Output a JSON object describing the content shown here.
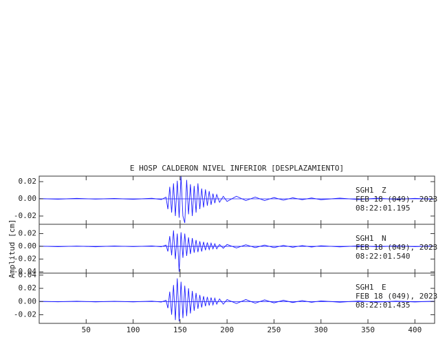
{
  "chart_data": [
    {
      "type": "line",
      "title": "E HOSP CALDERON NIVEL INFERIOR [DESPLAZAMIENTO]",
      "station": "SGH1",
      "component": "Z",
      "date": "FEB 18 (049), 2023",
      "time": "08:22:01.195",
      "xlim": [
        0,
        421
      ],
      "ylim": [
        -0.0296,
        0.0264
      ],
      "yticks": [
        0.02,
        {
          "value": 0,
          "label": "0.00"
        },
        -0.02
      ],
      "x": [
        0,
        20,
        40,
        60,
        80,
        100,
        120,
        130,
        135,
        137,
        139,
        141,
        143,
        145,
        147,
        149,
        151,
        153,
        155,
        157,
        159,
        161,
        163,
        165,
        167,
        169,
        171,
        173,
        175,
        177,
        179,
        181,
        183,
        185,
        187,
        189,
        192,
        196,
        200,
        210,
        220,
        230,
        240,
        250,
        260,
        270,
        280,
        290,
        300,
        320,
        340,
        360,
        380,
        400,
        420
      ],
      "color": "#1a1aff",
      "values": [
        0.0003,
        -0.0004,
        0.0005,
        -0.0003,
        0.0004,
        -0.0005,
        0.0006,
        -0.0008,
        0.002,
        -0.012,
        0.014,
        -0.016,
        0.018,
        -0.02,
        0.021,
        -0.022,
        0.026,
        -0.02,
        -0.028,
        0.022,
        -0.018,
        0.017,
        -0.02,
        0.015,
        -0.016,
        0.018,
        -0.012,
        0.012,
        -0.01,
        0.011,
        -0.008,
        0.009,
        -0.007,
        0.006,
        -0.005,
        0.005,
        -0.004,
        0.003,
        -0.003,
        0.003,
        -0.002,
        0.002,
        -0.002,
        0.0015,
        -0.0015,
        0.0012,
        -0.001,
        0.001,
        -0.001,
        0.0008,
        -0.0008,
        0.0007,
        -0.0006,
        0.0005,
        -0.0005
      ]
    },
    {
      "type": "line",
      "ylabel": "Amplitud [cm]",
      "station": "SGH1",
      "component": "N",
      "date": "FEB 18 (049), 2023",
      "time": "08:22:01.540",
      "xlim": [
        0,
        421
      ],
      "ylim": [
        -0.042,
        0.0346
      ],
      "yticks": [
        0.02,
        {
          "value": 0,
          "label": "0.00"
        },
        -0.02,
        -0.04
      ],
      "x": [
        0,
        20,
        40,
        60,
        80,
        100,
        120,
        130,
        135,
        137,
        139,
        141,
        143,
        145,
        147,
        149,
        151,
        153,
        155,
        157,
        159,
        161,
        163,
        165,
        167,
        169,
        171,
        173,
        175,
        177,
        179,
        181,
        183,
        185,
        187,
        189,
        192,
        196,
        200,
        210,
        220,
        230,
        240,
        250,
        260,
        270,
        280,
        290,
        300,
        320,
        340,
        360,
        380,
        400,
        420
      ],
      "color": "#1a1aff",
      "values": [
        0.0004,
        -0.0005,
        0.0004,
        -0.0006,
        0.0005,
        -0.0004,
        0.0006,
        -0.0007,
        0.002,
        -0.008,
        0.016,
        -0.014,
        0.025,
        -0.02,
        0.02,
        -0.04,
        0.022,
        -0.018,
        0.02,
        -0.015,
        0.014,
        -0.012,
        0.013,
        -0.01,
        0.01,
        -0.009,
        0.008,
        -0.008,
        0.007,
        -0.006,
        0.006,
        -0.005,
        0.005,
        -0.004,
        0.004,
        -0.004,
        0.003,
        -0.003,
        0.003,
        -0.0025,
        0.0025,
        -0.002,
        0.002,
        -0.002,
        0.0015,
        -0.0015,
        0.0012,
        -0.001,
        0.001,
        -0.0008,
        0.0008,
        -0.0007,
        0.0006,
        -0.0005,
        0.0005
      ]
    },
    {
      "type": "line",
      "station": "SGH1",
      "component": "E",
      "date": "FEB 18 (049), 2023",
      "time": "08:22:01.435",
      "xlim": [
        0,
        421
      ],
      "ylim": [
        -0.033,
        0.043
      ],
      "xticks": [
        50,
        100,
        150,
        200,
        250,
        300,
        350,
        400
      ],
      "yticks": [
        0.04,
        0.02,
        {
          "value": 0,
          "label": "0.00"
        },
        -0.02
      ],
      "x": [
        0,
        20,
        40,
        60,
        80,
        100,
        120,
        130,
        135,
        137,
        139,
        141,
        143,
        145,
        147,
        149,
        151,
        153,
        155,
        157,
        159,
        161,
        163,
        165,
        167,
        169,
        171,
        173,
        175,
        177,
        179,
        181,
        183,
        185,
        187,
        189,
        192,
        196,
        200,
        210,
        220,
        230,
        240,
        250,
        260,
        270,
        280,
        290,
        300,
        320,
        340,
        360,
        380,
        400,
        420
      ],
      "color": "#1a1aff",
      "values": [
        0.0004,
        -0.0004,
        0.0005,
        -0.0005,
        0.0004,
        -0.0005,
        0.0006,
        -0.0008,
        0.002,
        -0.01,
        0.015,
        -0.02,
        0.025,
        -0.028,
        0.035,
        -0.03,
        0.03,
        -0.025,
        0.024,
        -0.022,
        0.02,
        -0.018,
        0.016,
        -0.014,
        0.013,
        -0.011,
        0.01,
        -0.009,
        0.008,
        -0.007,
        0.007,
        -0.006,
        0.006,
        -0.005,
        0.005,
        -0.004,
        0.004,
        -0.004,
        0.003,
        -0.003,
        0.003,
        -0.0025,
        0.0025,
        -0.002,
        0.002,
        -0.0015,
        0.0015,
        -0.0012,
        0.001,
        -0.001,
        0.0008,
        -0.0008,
        0.0006,
        -0.0006,
        0.0005
      ]
    }
  ]
}
